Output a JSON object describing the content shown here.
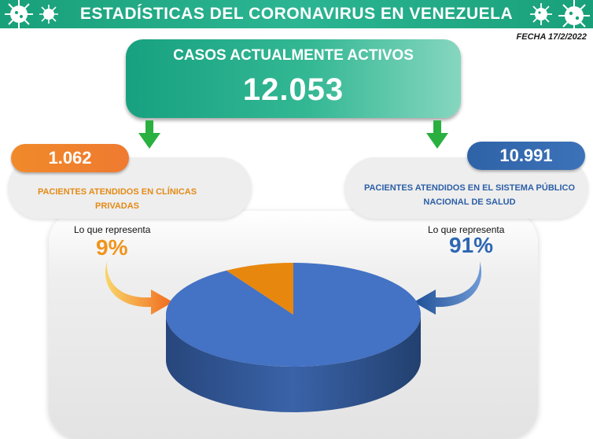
{
  "header": {
    "title": "ESTADÍSTICAS DEL CORONAVIRUS EN VENEZUELA"
  },
  "date_label": "FECHA 17/2/2022",
  "active": {
    "label": "CASOS ACTUALMENTE ACTIVOS",
    "value": "12.053"
  },
  "private": {
    "count": "1.062",
    "description": "PACIENTES ATENDIDOS EN CLÍNICAS PRIVADAS",
    "represents_label": "Lo que representa",
    "percent": "9%"
  },
  "public": {
    "count": "10.991",
    "description": "PACIENTES ATENDIDOS EN EL SISTEMA PÚBLICO NACIONAL DE SALUD",
    "represents_label": "Lo que representa",
    "percent": "91%"
  },
  "colors": {
    "green": "#1ea57f",
    "orange": "#f0891f",
    "blue": "#3d6fc4"
  },
  "chart_data": {
    "type": "pie",
    "title": "",
    "categories": [
      "PACIENTES ATENDIDOS EN CLÍNICAS PRIVADAS",
      "PACIENTES ATENDIDOS EN EL SISTEMA PÚBLICO NACIONAL DE SALUD"
    ],
    "values": [
      1062,
      10991
    ],
    "percentages": [
      9,
      91
    ],
    "colors": [
      "#e8870e",
      "#4472c4"
    ],
    "three_d": true
  }
}
